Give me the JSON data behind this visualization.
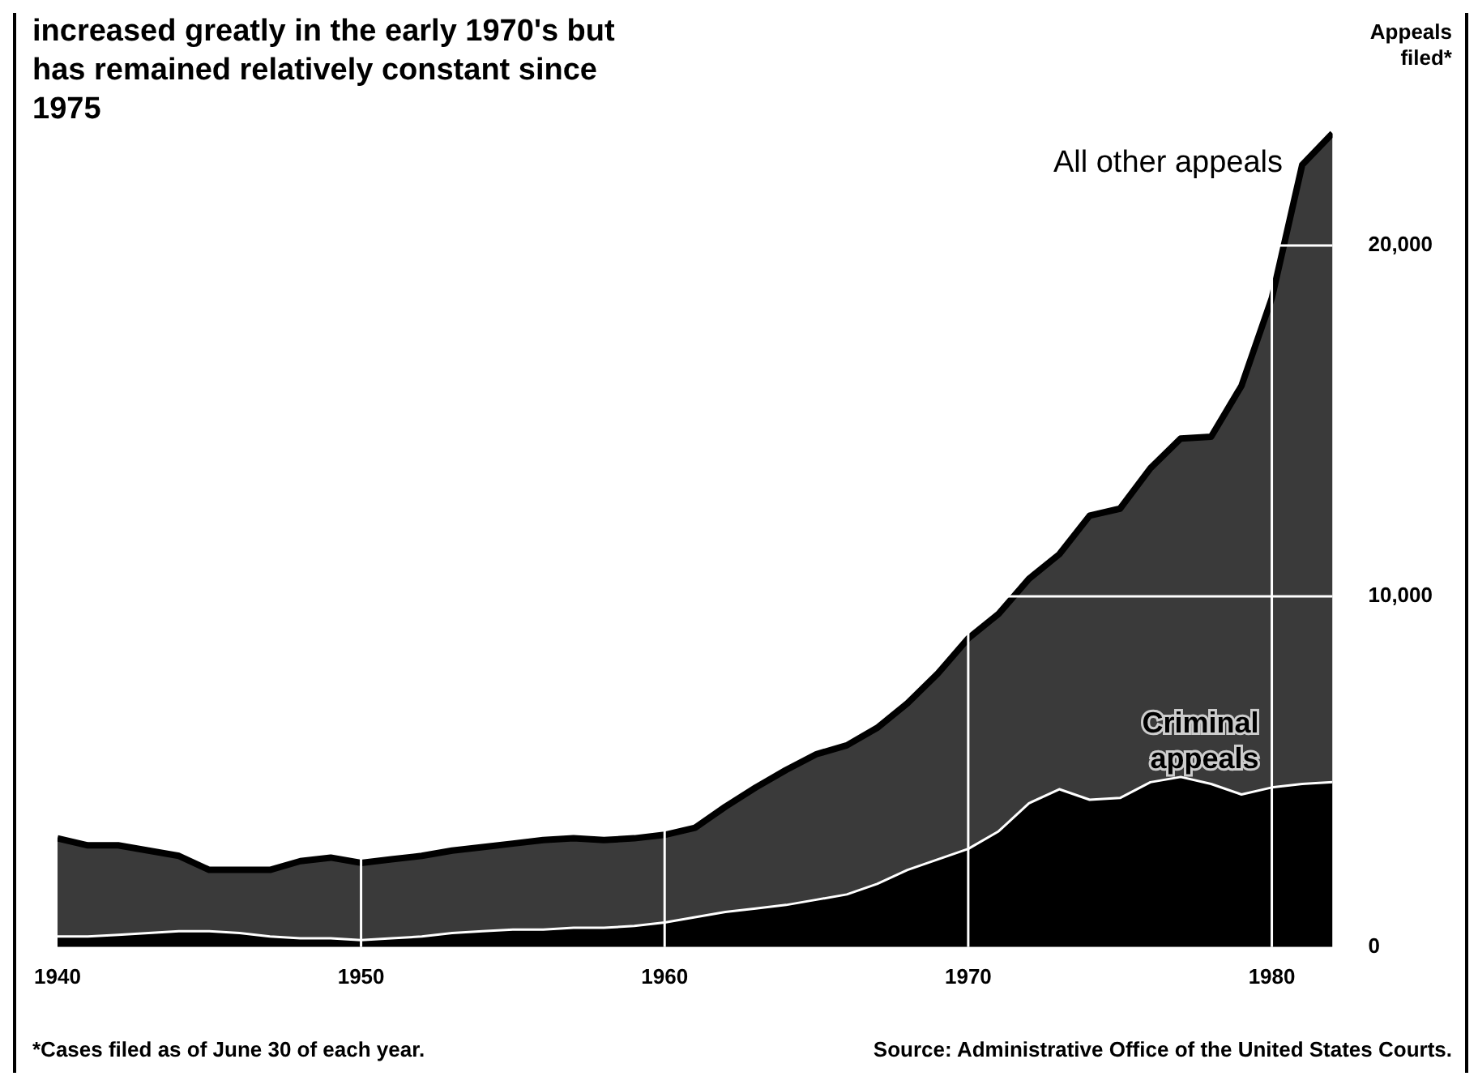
{
  "chart_data": {
    "type": "area",
    "stacked": true,
    "title": "increased greatly in the early 1970's but has remained relatively constant since 1975",
    "ylabel": "Appeals filed*",
    "x": [
      1940,
      1941,
      1942,
      1943,
      1944,
      1945,
      1946,
      1947,
      1948,
      1949,
      1950,
      1951,
      1952,
      1953,
      1954,
      1955,
      1956,
      1957,
      1958,
      1959,
      1960,
      1961,
      1962,
      1963,
      1964,
      1965,
      1966,
      1967,
      1968,
      1969,
      1970,
      1971,
      1972,
      1973,
      1974,
      1975,
      1976,
      1977,
      1978,
      1979,
      1980,
      1981,
      1982
    ],
    "series": [
      {
        "name": "Criminal appeals",
        "color": "#000000",
        "values": [
          300,
          300,
          350,
          400,
          450,
          450,
          400,
          300,
          250,
          250,
          200,
          250,
          300,
          400,
          450,
          500,
          500,
          550,
          550,
          600,
          700,
          850,
          1000,
          1100,
          1200,
          1350,
          1500,
          1800,
          2200,
          2500,
          2800,
          3300,
          4100,
          4500,
          4200,
          4250,
          4700,
          4850,
          4650,
          4350,
          4550,
          4650,
          4700
        ]
      },
      {
        "name": "All other appeals",
        "color": "#3a3a3a",
        "values": [
          2800,
          2600,
          2550,
          2350,
          2150,
          1750,
          1800,
          1900,
          2200,
          2300,
          2200,
          2250,
          2300,
          2350,
          2400,
          2450,
          2550,
          2550,
          2500,
          2500,
          2500,
          2550,
          3000,
          3450,
          3850,
          4150,
          4250,
          4450,
          4750,
          5300,
          6000,
          6200,
          6400,
          6700,
          8100,
          8250,
          8950,
          9650,
          9900,
          11650,
          13950,
          17650,
          18500
        ]
      }
    ],
    "xlim": [
      1940,
      1982
    ],
    "xticks": [
      1940,
      1950,
      1960,
      1970,
      1980
    ],
    "ylim": [
      0,
      23500
    ],
    "yticks": [
      0,
      {
        "value": 10000,
        "label": "10,000"
      },
      {
        "value": 20000,
        "label": "20,000"
      }
    ],
    "grid": true,
    "annotations": [
      "*Cases filed as of June 30 of each year.",
      "Source: Administrative Office of the United States Courts."
    ]
  }
}
